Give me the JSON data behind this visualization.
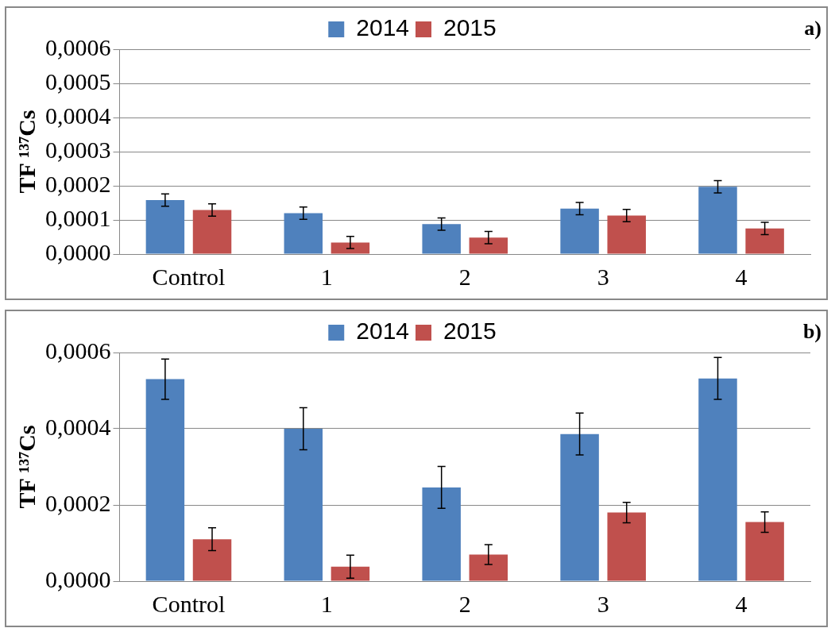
{
  "chart_data": [
    {
      "type": "bar",
      "ylabel": "TF ¹³⁷Cs",
      "annotations": [
        "a)"
      ],
      "categories": [
        "Control",
        "1",
        "2",
        "3",
        "4"
      ],
      "series": [
        {
          "name": "2014",
          "color": "#4f81bd",
          "values": [
            0.000158,
            0.00012,
            8.8e-05,
            0.000133,
            0.000197
          ],
          "errors": [
            1.8e-05,
            1.8e-05,
            1.8e-05,
            1.8e-05,
            1.8e-05
          ]
        },
        {
          "name": "2015",
          "color": "#c0504d",
          "values": [
            0.000129,
            3.4e-05,
            4.8e-05,
            0.000113,
            7.5e-05
          ],
          "errors": [
            1.8e-05,
            1.8e-05,
            1.8e-05,
            1.8e-05,
            1.8e-05
          ]
        }
      ],
      "ylim": [
        0,
        0.0006
      ],
      "yticks": [
        {
          "value": 0,
          "label": "0,0000"
        },
        {
          "value": 0.0001,
          "label": "0,0001"
        },
        {
          "value": 0.0002,
          "label": "0,0002"
        },
        {
          "value": 0.0003,
          "label": "0,0003"
        },
        {
          "value": 0.0004,
          "label": "0,0004"
        },
        {
          "value": 0.0005,
          "label": "0,0005"
        },
        {
          "value": 0.0006,
          "label": "0,0006"
        }
      ],
      "grid": "y",
      "legend": "top"
    },
    {
      "type": "bar",
      "ylabel": "TF ¹³⁷Cs",
      "annotations": [
        "b)"
      ],
      "categories": [
        "Control",
        "1",
        "2",
        "3",
        "4"
      ],
      "series": [
        {
          "name": "2014",
          "color": "#4f81bd",
          "values": [
            0.00053,
            0.0004,
            0.000246,
            0.000386,
            0.000532
          ],
          "errors": [
            5.3e-05,
            5.5e-05,
            5.5e-05,
            5.5e-05,
            5.5e-05
          ]
        },
        {
          "name": "2015",
          "color": "#c0504d",
          "values": [
            0.00011,
            3.8e-05,
            7e-05,
            0.00018,
            0.000155
          ],
          "errors": [
            3e-05,
            3e-05,
            2.6e-05,
            2.7e-05,
            2.7e-05
          ]
        }
      ],
      "ylim": [
        0,
        0.0006
      ],
      "yticks": [
        {
          "value": 0,
          "label": "0,0000"
        },
        {
          "value": 0.0002,
          "label": "0,0002"
        },
        {
          "value": 0.0004,
          "label": "0,0004"
        },
        {
          "value": 0.0006,
          "label": "0,0006"
        }
      ],
      "grid": "y",
      "legend": "top"
    }
  ]
}
